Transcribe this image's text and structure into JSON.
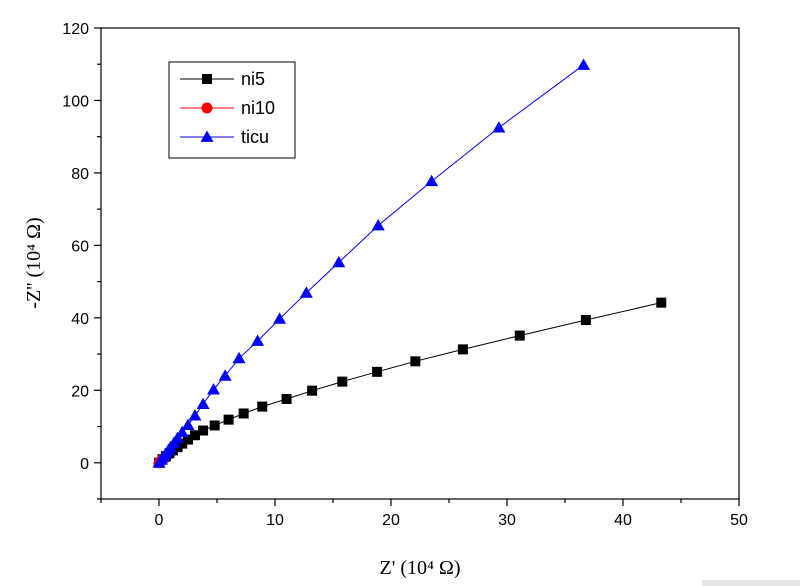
{
  "chart_data": {
    "type": "line",
    "title": "",
    "xlabel": "Z' (10⁴ Ω)",
    "ylabel": "-Z'' (10⁴ Ω)",
    "xlim": [
      -5,
      50
    ],
    "ylim": [
      -10,
      120
    ],
    "x_ticks": [
      0,
      10,
      20,
      30,
      40,
      50
    ],
    "y_ticks": [
      0,
      20,
      40,
      60,
      80,
      100,
      120
    ],
    "grid": false,
    "legend_position": "top-left",
    "series": [
      {
        "name": "ni5",
        "color": "#000000",
        "marker": "square",
        "x": [
          0,
          0.3,
          0.6,
          0.9,
          1.2,
          1.6,
          2.0,
          2.5,
          3.1,
          3.8,
          4.8,
          6.0,
          7.3,
          8.9,
          11.0,
          13.2,
          15.8,
          18.8,
          22.1,
          26.2,
          31.1,
          36.8,
          43.3
        ],
        "y": [
          0,
          1.0,
          1.8,
          2.6,
          3.4,
          4.3,
          5.3,
          6.4,
          7.6,
          8.9,
          10.3,
          11.9,
          13.6,
          15.5,
          17.6,
          19.9,
          22.4,
          25.1,
          28.0,
          31.3,
          35.1,
          39.4,
          44.2
        ]
      },
      {
        "name": "ni10",
        "color": "#ff0000",
        "marker": "circle",
        "x": [
          0,
          0.1,
          0.2,
          0.3,
          0.4
        ],
        "y": [
          0,
          0.3,
          0.6,
          0.9,
          1.2
        ]
      },
      {
        "name": "ticu",
        "color": "#0000ff",
        "marker": "triangle",
        "x": [
          0,
          0.2,
          0.4,
          0.6,
          0.8,
          1.0,
          1.3,
          1.6,
          2.0,
          2.5,
          3.1,
          3.8,
          4.7,
          5.7,
          6.9,
          8.5,
          10.4,
          12.7,
          15.5,
          18.9,
          23.5,
          29.3,
          36.6
        ],
        "y": [
          0,
          0.8,
          1.6,
          2.5,
          3.4,
          4.3,
          5.5,
          6.8,
          8.4,
          10.4,
          13.0,
          16.2,
          20.2,
          24.0,
          28.8,
          33.6,
          39.7,
          46.9,
          55.3,
          65.5,
          77.7,
          92.5,
          109.8
        ]
      }
    ]
  }
}
